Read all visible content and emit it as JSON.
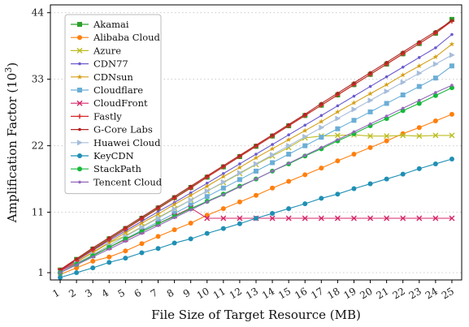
{
  "chart_data": {
    "type": "line",
    "title": "",
    "xlabel": "File Size of Target Resource (MB)",
    "ylabel": "Amplification Factor (10",
    "ylabel_sup": "3",
    "ylabel_close": ")",
    "x": [
      1,
      2,
      3,
      4,
      5,
      6,
      7,
      8,
      9,
      10,
      11,
      12,
      13,
      14,
      15,
      16,
      17,
      18,
      19,
      20,
      21,
      22,
      23,
      24,
      25
    ],
    "x_tick_labels": [
      "1",
      "2",
      "3",
      "4",
      "5",
      "6",
      "7",
      "8",
      "9",
      "10",
      "11",
      "12",
      "13",
      "14",
      "15",
      "16",
      "17",
      "18",
      "19",
      "20",
      "21",
      "22",
      "23",
      "24",
      "25"
    ],
    "y_ticks": [
      1,
      11,
      22,
      33,
      44
    ],
    "y_tick_labels": [
      "1",
      "11",
      "22",
      "33",
      "44"
    ],
    "xlim": [
      0.4,
      25.6
    ],
    "ylim": [
      -0.2,
      45.3
    ],
    "grid": "horizontal-dotted",
    "legend_position": "top-left",
    "series": [
      {
        "name": "Akamai",
        "color": "#2ca02c",
        "marker": "square",
        "values": [
          1.45,
          3.2,
          4.9,
          6.6,
          8.3,
          10.0,
          11.7,
          13.4,
          15.1,
          16.8,
          18.5,
          20.2,
          21.9,
          23.6,
          25.3,
          27.0,
          28.7,
          30.4,
          32.1,
          33.8,
          35.5,
          37.2,
          38.9,
          40.6,
          42.9
        ]
      },
      {
        "name": "Alibaba Cloud",
        "color": "#ff7f0e",
        "marker": "circle",
        "values": [
          0.7,
          1.8,
          2.9,
          3.6,
          4.6,
          5.8,
          7.0,
          8.1,
          9.2,
          10.5,
          11.6,
          12.7,
          13.8,
          15.0,
          16.1,
          17.2,
          18.3,
          19.5,
          20.6,
          21.7,
          22.8,
          24.0,
          25.0,
          26.1,
          27.2
        ]
      },
      {
        "name": "Azure",
        "color": "#bcbd22",
        "marker": "x",
        "values": [
          1.4,
          2.8,
          4.3,
          5.9,
          7.1,
          8.6,
          10.1,
          11.6,
          13.0,
          14.5,
          15.9,
          17.4,
          18.9,
          20.3,
          21.7,
          23.3,
          23.6,
          23.7,
          23.8,
          23.6,
          23.6,
          23.7,
          23.6,
          23.7,
          23.7
        ]
      },
      {
        "name": "CDN77",
        "color": "#6a5acd",
        "marker": "dot",
        "values": [
          1.3,
          3.0,
          4.7,
          6.3,
          7.9,
          9.5,
          11.1,
          12.6,
          14.2,
          15.8,
          17.4,
          19.0,
          20.6,
          22.2,
          23.8,
          25.4,
          27.0,
          28.6,
          30.2,
          31.8,
          33.4,
          35.0,
          36.6,
          38.2,
          40.4
        ]
      },
      {
        "name": "CDNsun",
        "color": "#d4a017",
        "marker": "star",
        "values": [
          1.2,
          2.8,
          4.4,
          6.0,
          7.6,
          9.2,
          10.7,
          12.3,
          13.8,
          15.3,
          16.9,
          18.4,
          20.0,
          21.5,
          23.0,
          24.5,
          26.0,
          27.6,
          29.1,
          30.6,
          32.1,
          33.7,
          35.2,
          36.7,
          38.8
        ]
      },
      {
        "name": "Cloudflare",
        "color": "#6baed6",
        "marker": "square",
        "values": [
          1.0,
          2.4,
          3.8,
          5.2,
          6.6,
          8.0,
          9.4,
          10.8,
          12.2,
          13.6,
          15.0,
          16.4,
          17.8,
          19.2,
          20.6,
          22.0,
          23.4,
          24.8,
          26.2,
          27.6,
          29.0,
          30.4,
          31.8,
          33.2,
          35.2
        ]
      },
      {
        "name": "CloudFront",
        "color": "#d62768",
        "marker": "x",
        "values": [
          1.3,
          2.6,
          3.9,
          5.2,
          6.5,
          7.8,
          9.1,
          10.4,
          11.7,
          10.0,
          10.0,
          10.0,
          10.0,
          10.0,
          10.0,
          10.0,
          10.0,
          10.0,
          10.0,
          10.0,
          10.0,
          10.0,
          10.0,
          10.0,
          10.0
        ]
      },
      {
        "name": "Fastly",
        "color": "#d62728",
        "marker": "plus",
        "values": [
          1.4,
          3.1,
          4.8,
          6.5,
          8.2,
          9.9,
          11.6,
          13.3,
          15.0,
          16.8,
          18.5,
          20.2,
          21.9,
          23.6,
          25.3,
          27.0,
          28.7,
          30.4,
          32.1,
          33.8,
          35.5,
          37.2,
          38.9,
          40.6,
          42.6
        ]
      },
      {
        "name": "G-Core Labs",
        "color": "#b22222",
        "marker": "dot",
        "values": [
          1.5,
          3.3,
          5.1,
          6.8,
          8.5,
          10.2,
          11.9,
          13.6,
          15.3,
          17.0,
          18.7,
          20.4,
          22.1,
          23.8,
          25.5,
          27.2,
          29.0,
          30.7,
          32.4,
          34.1,
          35.8,
          37.5,
          39.2,
          40.9,
          42.7
        ]
      },
      {
        "name": "Huawei Cloud",
        "color": "#a6bddb",
        "marker": "triangle-right",
        "values": [
          1.0,
          2.5,
          4.0,
          5.5,
          7.0,
          8.5,
          10.0,
          11.5,
          13.0,
          14.5,
          16.0,
          17.5,
          19.0,
          20.5,
          22.0,
          23.5,
          25.0,
          26.5,
          28.0,
          29.5,
          31.0,
          32.5,
          34.0,
          35.5,
          37.0
        ]
      },
      {
        "name": "KeyCDN",
        "color": "#1f8fb4",
        "marker": "circle",
        "values": [
          0.2,
          1.0,
          1.8,
          2.7,
          3.4,
          4.3,
          5.0,
          5.9,
          6.6,
          7.5,
          8.3,
          9.1,
          10.0,
          10.8,
          11.6,
          12.4,
          13.3,
          14.0,
          14.9,
          15.7,
          16.5,
          17.3,
          18.2,
          19.0,
          19.8
        ]
      },
      {
        "name": "StackPath",
        "color": "#17b83a",
        "marker": "circle",
        "values": [
          1.0,
          2.4,
          3.8,
          5.2,
          6.6,
          7.8,
          9.1,
          10.3,
          11.6,
          12.8,
          14.0,
          15.3,
          16.5,
          17.8,
          19.0,
          20.3,
          21.5,
          22.8,
          24.0,
          25.3,
          26.5,
          27.8,
          29.0,
          30.3,
          31.6
        ]
      },
      {
        "name": "Tencent Cloud",
        "color": "#9467bd",
        "marker": "dot",
        "values": [
          1.0,
          2.3,
          3.6,
          4.9,
          6.2,
          7.5,
          8.8,
          10.1,
          11.4,
          12.7,
          13.9,
          15.2,
          16.5,
          17.8,
          19.1,
          20.4,
          21.7,
          23.0,
          24.3,
          25.6,
          26.9,
          28.2,
          29.5,
          30.8,
          32.0
        ]
      }
    ]
  }
}
